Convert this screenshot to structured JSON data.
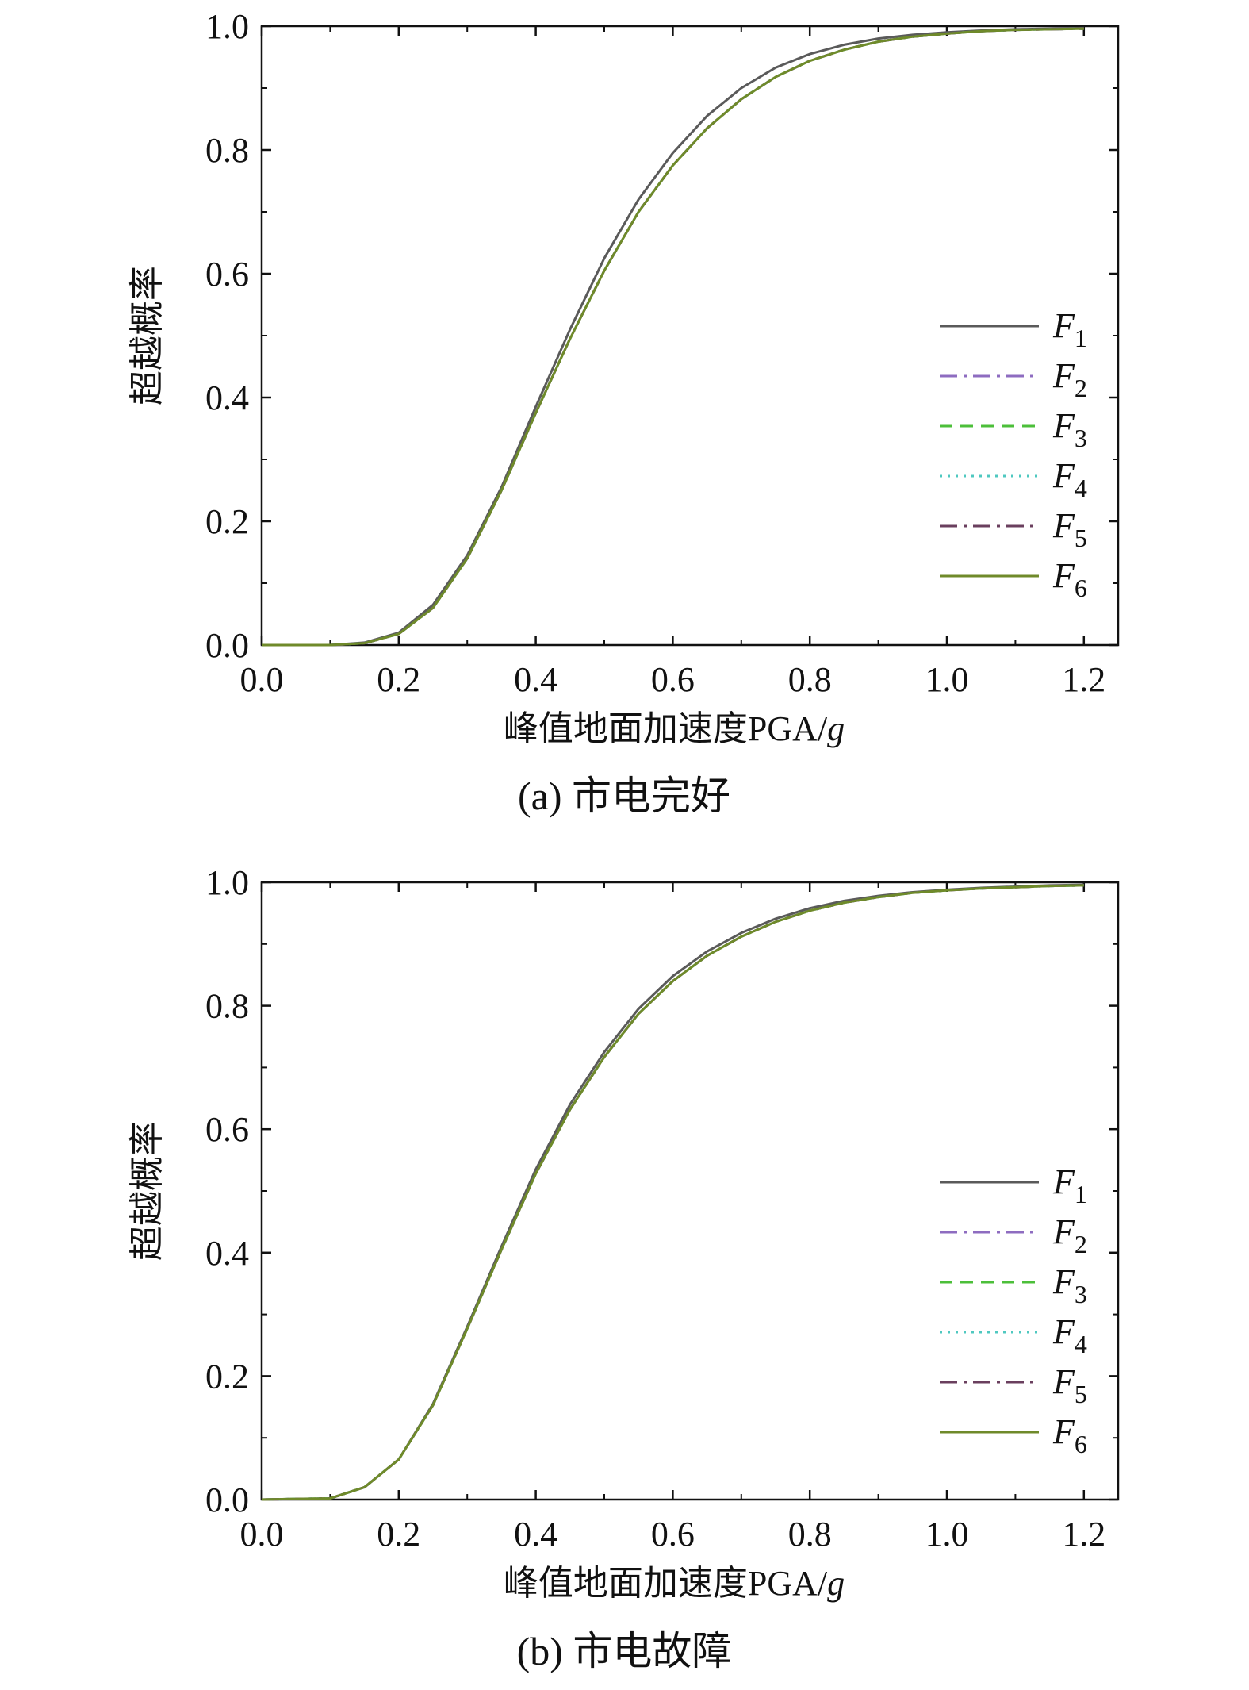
{
  "chart_data": [
    {
      "type": "line",
      "caption": "(a) 市电完好",
      "xlabel": "峰值地面加速度PGA/",
      "xlabel_italic": "g",
      "ylabel": "超越概率",
      "xlim": [
        0,
        1.25
      ],
      "ylim": [
        0,
        1.0
      ],
      "xticks": [
        "0.0",
        "0.2",
        "0.4",
        "0.6",
        "0.8",
        "1.0",
        "1.2"
      ],
      "yticks": [
        "0.0",
        "0.2",
        "0.4",
        "0.6",
        "0.8",
        "1.0"
      ],
      "grid": false,
      "legend_position": "right",
      "x": [
        0.0,
        0.1,
        0.15,
        0.2,
        0.25,
        0.3,
        0.35,
        0.4,
        0.45,
        0.5,
        0.55,
        0.6,
        0.65,
        0.7,
        0.75,
        0.8,
        0.85,
        0.9,
        0.95,
        1.0,
        1.05,
        1.1,
        1.15,
        1.2
      ],
      "series": [
        {
          "name": "F1",
          "color": "#5a5a5a",
          "dash": "",
          "values": [
            0.0,
            0.0,
            0.004,
            0.02,
            0.065,
            0.145,
            0.255,
            0.385,
            0.51,
            0.625,
            0.72,
            0.795,
            0.855,
            0.9,
            0.933,
            0.955,
            0.97,
            0.98,
            0.986,
            0.99,
            0.993,
            0.995,
            0.996,
            0.997
          ]
        },
        {
          "name": "F2",
          "color": "#8e6cc0",
          "dash": "22 8 4 8",
          "values": [
            0.0,
            0.0,
            0.003,
            0.018,
            0.06,
            0.14,
            0.25,
            0.375,
            0.495,
            0.605,
            0.7,
            0.775,
            0.835,
            0.882,
            0.918,
            0.944,
            0.962,
            0.975,
            0.983,
            0.988,
            0.992,
            0.994,
            0.995,
            0.996
          ]
        },
        {
          "name": "F3",
          "color": "#4cbf3a",
          "dash": "16 10",
          "values": [
            0.0,
            0.0,
            0.003,
            0.018,
            0.06,
            0.14,
            0.25,
            0.375,
            0.495,
            0.605,
            0.7,
            0.775,
            0.835,
            0.882,
            0.918,
            0.944,
            0.962,
            0.975,
            0.983,
            0.988,
            0.992,
            0.994,
            0.995,
            0.996
          ]
        },
        {
          "name": "F4",
          "color": "#4fc8c0",
          "dash": "3 7",
          "values": [
            0.0,
            0.0,
            0.003,
            0.018,
            0.06,
            0.14,
            0.25,
            0.375,
            0.495,
            0.605,
            0.7,
            0.775,
            0.835,
            0.882,
            0.918,
            0.944,
            0.962,
            0.975,
            0.983,
            0.988,
            0.992,
            0.994,
            0.995,
            0.996
          ]
        },
        {
          "name": "F5",
          "color": "#6a3f5e",
          "dash": "22 8 4 8",
          "values": [
            0.0,
            0.0,
            0.003,
            0.018,
            0.06,
            0.14,
            0.25,
            0.375,
            0.495,
            0.605,
            0.7,
            0.775,
            0.835,
            0.882,
            0.918,
            0.944,
            0.962,
            0.975,
            0.983,
            0.988,
            0.992,
            0.994,
            0.995,
            0.996
          ]
        },
        {
          "name": "F6",
          "color": "#6f8a2a",
          "dash": "",
          "values": [
            0.0,
            0.0,
            0.003,
            0.018,
            0.06,
            0.14,
            0.25,
            0.375,
            0.495,
            0.605,
            0.7,
            0.775,
            0.835,
            0.882,
            0.918,
            0.944,
            0.962,
            0.975,
            0.983,
            0.988,
            0.992,
            0.994,
            0.995,
            0.996
          ]
        }
      ]
    },
    {
      "type": "line",
      "caption": "(b) 市电故障",
      "xlabel": "峰值地面加速度PGA/",
      "xlabel_italic": "g",
      "ylabel": "超越概率",
      "xlim": [
        0,
        1.25
      ],
      "ylim": [
        0,
        1.0
      ],
      "xticks": [
        "0.0",
        "0.2",
        "0.4",
        "0.6",
        "0.8",
        "1.0",
        "1.2"
      ],
      "yticks": [
        "0.0",
        "0.2",
        "0.4",
        "0.6",
        "0.8",
        "1.0"
      ],
      "grid": false,
      "legend_position": "right",
      "x": [
        0.0,
        0.1,
        0.15,
        0.2,
        0.25,
        0.3,
        0.35,
        0.4,
        0.45,
        0.5,
        0.55,
        0.6,
        0.65,
        0.7,
        0.75,
        0.8,
        0.85,
        0.9,
        0.95,
        1.0,
        1.05,
        1.1,
        1.15,
        1.2
      ],
      "series": [
        {
          "name": "F1",
          "color": "#5a5a5a",
          "dash": "",
          "values": [
            0.0,
            0.002,
            0.02,
            0.065,
            0.155,
            0.28,
            0.41,
            0.535,
            0.64,
            0.725,
            0.795,
            0.848,
            0.888,
            0.918,
            0.941,
            0.958,
            0.97,
            0.978,
            0.984,
            0.988,
            0.991,
            0.993,
            0.995,
            0.996
          ]
        },
        {
          "name": "F2",
          "color": "#8e6cc0",
          "dash": "22 8 4 8",
          "values": [
            0.0,
            0.002,
            0.02,
            0.065,
            0.153,
            0.277,
            0.405,
            0.528,
            0.632,
            0.717,
            0.787,
            0.84,
            0.881,
            0.912,
            0.936,
            0.954,
            0.967,
            0.976,
            0.983,
            0.987,
            0.99,
            0.992,
            0.994,
            0.995
          ]
        },
        {
          "name": "F3",
          "color": "#4cbf3a",
          "dash": "16 10",
          "values": [
            0.0,
            0.002,
            0.02,
            0.065,
            0.153,
            0.277,
            0.405,
            0.528,
            0.632,
            0.717,
            0.787,
            0.84,
            0.881,
            0.912,
            0.936,
            0.954,
            0.967,
            0.976,
            0.983,
            0.987,
            0.99,
            0.992,
            0.994,
            0.995
          ]
        },
        {
          "name": "F4",
          "color": "#4fc8c0",
          "dash": "3 7",
          "values": [
            0.0,
            0.002,
            0.02,
            0.065,
            0.153,
            0.277,
            0.405,
            0.528,
            0.632,
            0.717,
            0.787,
            0.84,
            0.881,
            0.912,
            0.936,
            0.954,
            0.967,
            0.976,
            0.983,
            0.987,
            0.99,
            0.992,
            0.994,
            0.995
          ]
        },
        {
          "name": "F5",
          "color": "#6a3f5e",
          "dash": "22 8 4 8",
          "values": [
            0.0,
            0.002,
            0.02,
            0.065,
            0.153,
            0.277,
            0.405,
            0.528,
            0.632,
            0.717,
            0.787,
            0.84,
            0.881,
            0.912,
            0.936,
            0.954,
            0.967,
            0.976,
            0.983,
            0.987,
            0.99,
            0.992,
            0.994,
            0.995
          ]
        },
        {
          "name": "F6",
          "color": "#6f8a2a",
          "dash": "",
          "values": [
            0.0,
            0.002,
            0.02,
            0.065,
            0.153,
            0.277,
            0.405,
            0.528,
            0.632,
            0.717,
            0.787,
            0.84,
            0.881,
            0.912,
            0.936,
            0.954,
            0.967,
            0.976,
            0.983,
            0.987,
            0.99,
            0.992,
            0.994,
            0.995
          ]
        }
      ]
    }
  ]
}
